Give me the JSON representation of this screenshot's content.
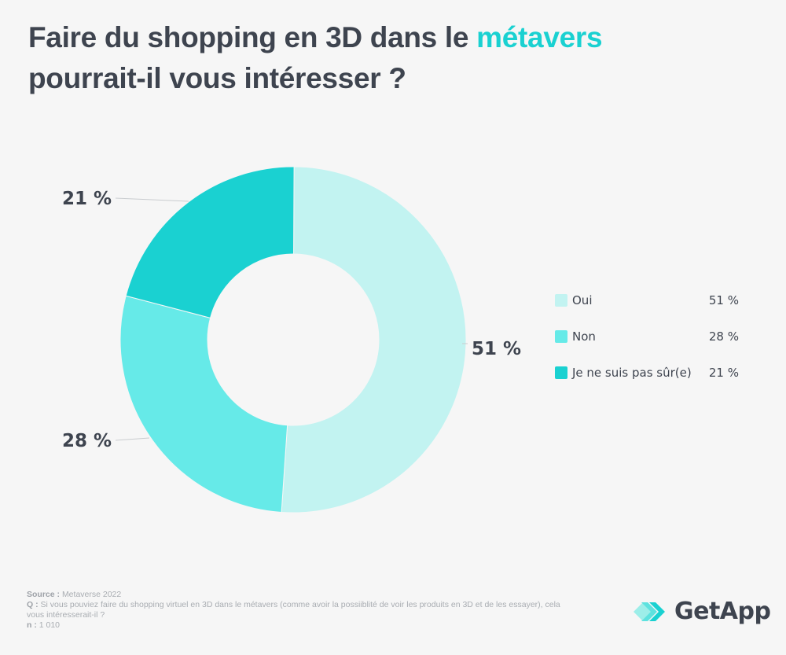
{
  "header": {
    "title_part1": "Faire du shopping en 3D dans le ",
    "title_accent": "métavers",
    "title_part2": "pourrait-il vous intéresser ?",
    "accent_color": "#1ad1d1"
  },
  "chart_data": {
    "type": "pie",
    "variant": "donut",
    "title": "Faire du shopping en 3D dans le métavers pourrait-il vous intéresser ?",
    "categories": [
      "Oui",
      "Non",
      "Je ne suis pas sûr(e)"
    ],
    "values": [
      51,
      28,
      21
    ],
    "unit": "%",
    "data_labels": [
      "51 %",
      "28 %",
      "21 %"
    ],
    "colors": [
      "#c2f3f1",
      "#66eae8",
      "#1ad1d1"
    ],
    "start": "top",
    "direction": "clockwise",
    "legend_position": "right"
  },
  "legend": {
    "items": [
      {
        "label": "Oui",
        "value": "51 %",
        "color": "#c2f3f1"
      },
      {
        "label": "Non",
        "value": "28 %",
        "color": "#66eae8"
      },
      {
        "label": "Je ne suis pas sûr(e)",
        "value": "21 %",
        "color": "#1ad1d1"
      }
    ]
  },
  "footer": {
    "source_label": "Source :",
    "source_value": "Metaverse 2022",
    "question_label": "Q :",
    "question_value": "Si vous pouviez faire du shopping virtuel en 3D dans le métavers (comme avoir la possiiblité de voir les produits en 3D et de les essayer), cela vous intéresserait-il ?",
    "n_label": "n :",
    "n_value": "1 010"
  },
  "brand": {
    "name": "GetApp",
    "icon": "getapp-chevrons-icon"
  }
}
